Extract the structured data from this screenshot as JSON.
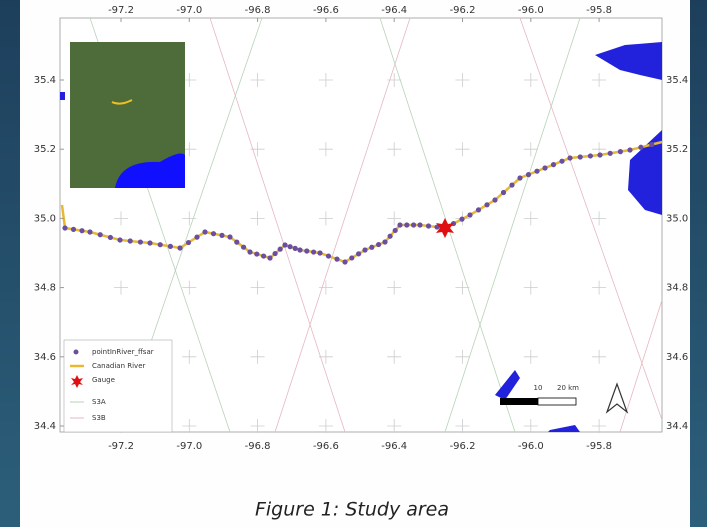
{
  "map": {
    "lon_ticks": [
      -97.2,
      {
        "value": -97.0,
        "label": "-97.0"
      },
      -96.8,
      -96.6,
      -96.4,
      -96.2,
      {
        "value": -96.0,
        "label": "-96.0"
      },
      -95.8
    ],
    "lat_ticks": [
      35.4,
      35.2,
      {
        "value": 35.0,
        "label": "35.0"
      },
      34.8,
      34.6,
      34.4
    ],
    "legend": [
      "pointInRiver_ffsar",
      "Canadian River",
      "Gauge",
      "S3A",
      "S3B"
    ],
    "scale_bar": {
      "labels": [
        "10",
        "20 km"
      ]
    }
  },
  "caption": "Figure 1: Study area"
}
